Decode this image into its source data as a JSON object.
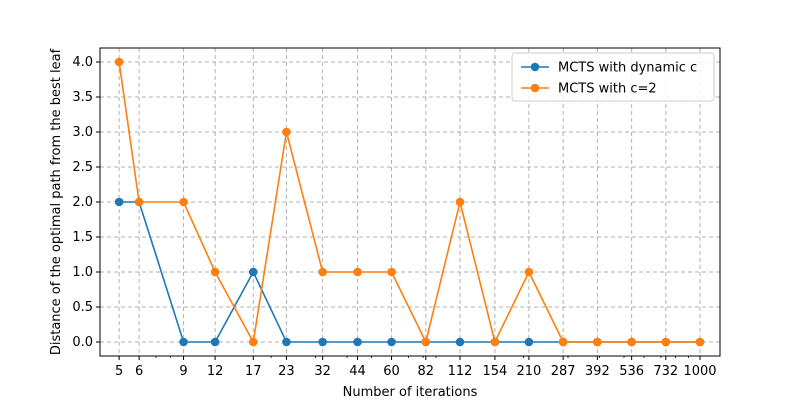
{
  "chart_data": {
    "type": "line",
    "xlabel": "Number of iterations",
    "ylabel": "Distance of the optimal path from the best leaf",
    "categories": [
      "5",
      "6",
      "9",
      "12",
      "17",
      "23",
      "32",
      "44",
      "60",
      "82",
      "112",
      "154",
      "210",
      "287",
      "392",
      "536",
      "732",
      "1000"
    ],
    "x_scale": "log",
    "ylim": [
      -0.2,
      4.2
    ],
    "yticks": [
      "0.0",
      "0.5",
      "1.0",
      "1.5",
      "2.0",
      "2.5",
      "3.0",
      "3.5",
      "4.0"
    ],
    "grid": true,
    "grid_style": "dashed",
    "legend_position": "top-right",
    "series": [
      {
        "name": "MCTS with dynamic c",
        "color": "#1f77b4",
        "values": [
          2,
          2,
          0,
          0,
          1,
          0,
          0,
          0,
          0,
          0,
          0,
          0,
          0,
          0,
          0,
          0,
          0,
          0
        ]
      },
      {
        "name": "MCTS with c=2",
        "color": "#ff7f0e",
        "values": [
          4,
          2,
          2,
          1,
          0,
          3,
          1,
          1,
          1,
          0,
          2,
          0,
          1,
          0,
          0,
          0,
          0,
          0
        ]
      }
    ]
  }
}
